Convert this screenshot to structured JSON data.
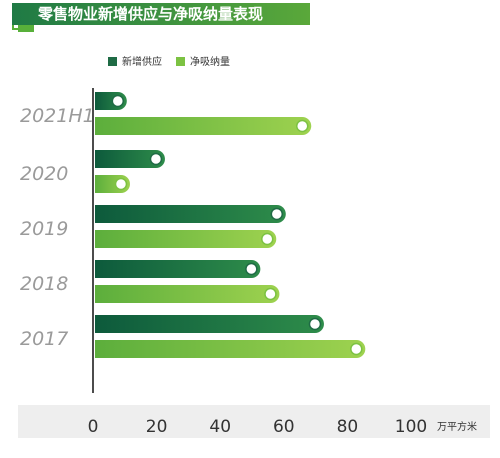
{
  "title": "零售物业新增供应与净吸纳量表现",
  "chart_data": {
    "type": "bar",
    "orientation": "horizontal",
    "categories": [
      "2021H1",
      "2020",
      "2019",
      "2018",
      "2017"
    ],
    "series": [
      {
        "name": "新增供应",
        "color": "#1f6b45",
        "values": [
          10,
          22,
          60,
          52,
          72
        ]
      },
      {
        "name": "净吸纳量",
        "color": "#7cc242",
        "values": [
          68,
          11,
          57,
          58,
          85
        ]
      }
    ],
    "xlim": [
      0,
      100
    ],
    "xticks": [
      "0",
      "20",
      "40",
      "60",
      "80",
      "100"
    ],
    "unit": "万平方米",
    "legend_position": "top-left",
    "grid": false
  }
}
